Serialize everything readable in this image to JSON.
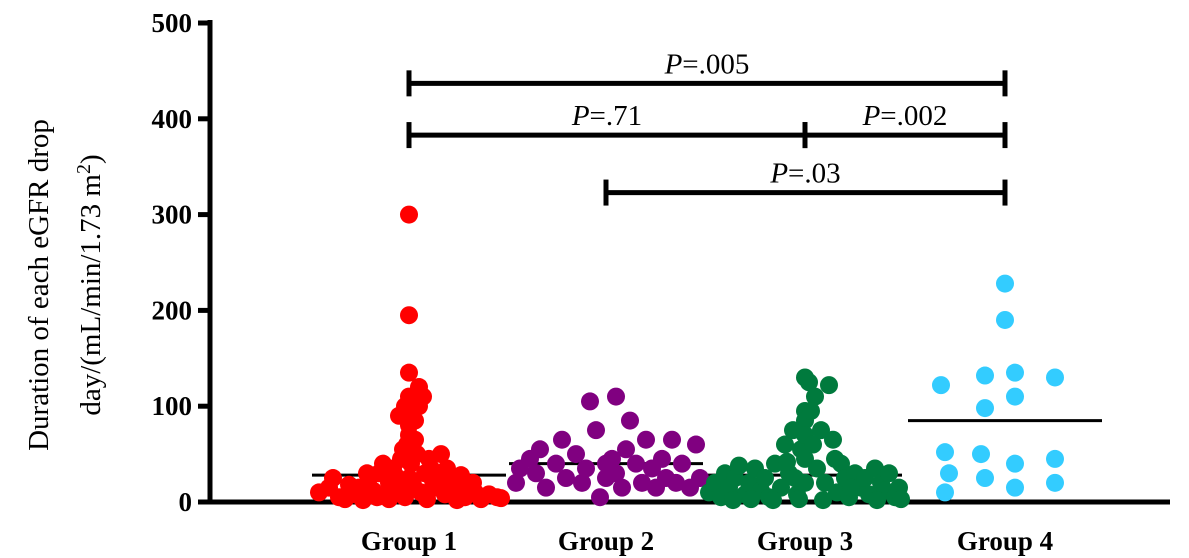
{
  "chart_data": {
    "type": "scatter",
    "ylabel_line1": "Duration of each eGFR drop",
    "ylabel_line2_main": "day/(mL/min/1.73 m",
    "ylabel_line2_sup": "2",
    "ylabel_line2_end": ")",
    "ylim": [
      0,
      500
    ],
    "yticks": [
      0,
      100,
      200,
      300,
      400,
      500
    ],
    "categories": [
      "Group 1",
      "Group 2",
      "Group 3",
      "Group 4"
    ],
    "series": [
      {
        "color": "#ff0000",
        "median": 28,
        "points": [
          [
            -0.45,
            10
          ],
          [
            -0.4,
            15
          ],
          [
            -0.35,
            5
          ],
          [
            -0.3,
            18
          ],
          [
            -0.27,
            8
          ],
          [
            -0.23,
            2
          ],
          [
            -0.2,
            25
          ],
          [
            -0.18,
            12
          ],
          [
            -0.15,
            30
          ],
          [
            -0.12,
            7
          ],
          [
            -0.1,
            20
          ],
          [
            -0.08,
            35
          ],
          [
            -0.06,
            15
          ],
          [
            -0.04,
            45
          ],
          [
            -0.03,
            55
          ],
          [
            -0.02,
            5
          ],
          [
            -0.01,
            60
          ],
          [
            0.0,
            25
          ],
          [
            0.0,
            300
          ],
          [
            0.0,
            195
          ],
          [
            0.0,
            135
          ],
          [
            0.0,
            110
          ],
          [
            0.0,
            95
          ],
          [
            0.0,
            80
          ],
          [
            0.0,
            70
          ],
          [
            0.01,
            40
          ],
          [
            0.02,
            18
          ],
          [
            0.03,
            85
          ],
          [
            0.03,
            65
          ],
          [
            0.04,
            50
          ],
          [
            0.05,
            100
          ],
          [
            0.06,
            10
          ],
          [
            0.07,
            110
          ],
          [
            0.08,
            30
          ],
          [
            0.1,
            45
          ],
          [
            0.12,
            22
          ],
          [
            0.14,
            15
          ],
          [
            0.16,
            50
          ],
          [
            0.18,
            8
          ],
          [
            0.2,
            25
          ],
          [
            0.22,
            12
          ],
          [
            0.25,
            20
          ],
          [
            0.28,
            5
          ],
          [
            0.3,
            15
          ],
          [
            0.33,
            10
          ],
          [
            0.36,
            3
          ],
          [
            0.4,
            8
          ],
          [
            0.44,
            5
          ],
          [
            -0.38,
            25
          ],
          [
            -0.32,
            3
          ],
          [
            -0.25,
            15
          ],
          [
            -0.16,
            5
          ],
          [
            -0.1,
            3
          ],
          [
            0.09,
            3
          ],
          [
            0.15,
            30
          ],
          [
            0.24,
            2
          ],
          [
            0.32,
            20
          ],
          [
            0.46,
            4
          ],
          [
            -0.05,
            90
          ],
          [
            0.05,
            120
          ],
          [
            -0.02,
            100
          ],
          [
            0.02,
            55
          ],
          [
            -0.07,
            28
          ],
          [
            0.11,
            35
          ],
          [
            -0.13,
            40
          ],
          [
            0.19,
            35
          ],
          [
            0.26,
            28
          ],
          [
            -0.21,
            30
          ]
        ]
      },
      {
        "color": "#800080",
        "median": 40,
        "points": [
          [
            -0.45,
            20
          ],
          [
            -0.43,
            35
          ],
          [
            -0.38,
            45
          ],
          [
            -0.35,
            30
          ],
          [
            -0.33,
            55
          ],
          [
            -0.3,
            15
          ],
          [
            -0.25,
            40
          ],
          [
            -0.22,
            65
          ],
          [
            -0.2,
            25
          ],
          [
            -0.15,
            50
          ],
          [
            -0.12,
            20
          ],
          [
            -0.1,
            35
          ],
          [
            -0.08,
            105
          ],
          [
            -0.05,
            75
          ],
          [
            -0.03,
            5
          ],
          [
            0.0,
            40
          ],
          [
            0.0,
            25
          ],
          [
            0.03,
            45
          ],
          [
            0.05,
            110
          ],
          [
            0.05,
            30
          ],
          [
            0.08,
            15
          ],
          [
            0.1,
            55
          ],
          [
            0.12,
            85
          ],
          [
            0.15,
            40
          ],
          [
            0.18,
            20
          ],
          [
            0.2,
            65
          ],
          [
            0.23,
            35
          ],
          [
            0.25,
            15
          ],
          [
            0.28,
            45
          ],
          [
            0.3,
            25
          ],
          [
            0.33,
            65
          ],
          [
            0.35,
            20
          ],
          [
            0.38,
            40
          ],
          [
            0.42,
            15
          ],
          [
            0.45,
            60
          ],
          [
            0.47,
            25
          ]
        ]
      },
      {
        "color": "#007a3d",
        "median": 28,
        "points": [
          [
            -0.48,
            10
          ],
          [
            -0.45,
            20
          ],
          [
            -0.42,
            5
          ],
          [
            -0.4,
            30
          ],
          [
            -0.38,
            15
          ],
          [
            -0.35,
            25
          ],
          [
            -0.33,
            38
          ],
          [
            -0.3,
            8
          ],
          [
            -0.28,
            20
          ],
          [
            -0.25,
            35
          ],
          [
            -0.22,
            12
          ],
          [
            -0.2,
            25
          ],
          [
            -0.18,
            5
          ],
          [
            -0.15,
            40
          ],
          [
            -0.12,
            15
          ],
          [
            -0.1,
            60
          ],
          [
            -0.08,
            30
          ],
          [
            -0.06,
            75
          ],
          [
            -0.04,
            8
          ],
          [
            -0.02,
            55
          ],
          [
            0.0,
            130
          ],
          [
            0.0,
            95
          ],
          [
            0.0,
            85
          ],
          [
            0.0,
            70
          ],
          [
            0.0,
            45
          ],
          [
            0.0,
            20
          ],
          [
            0.02,
            125
          ],
          [
            0.04,
            60
          ],
          [
            0.05,
            110
          ],
          [
            0.06,
            35
          ],
          [
            0.08,
            75
          ],
          [
            0.1,
            20
          ],
          [
            0.12,
            122
          ],
          [
            0.14,
            65
          ],
          [
            0.16,
            10
          ],
          [
            0.18,
            40
          ],
          [
            0.2,
            25
          ],
          [
            0.22,
            5
          ],
          [
            0.25,
            30
          ],
          [
            0.28,
            15
          ],
          [
            0.3,
            25
          ],
          [
            0.32,
            8
          ],
          [
            0.35,
            35
          ],
          [
            0.38,
            20
          ],
          [
            0.4,
            12
          ],
          [
            0.42,
            30
          ],
          [
            0.45,
            5
          ],
          [
            0.47,
            15
          ],
          [
            0.48,
            3
          ],
          [
            -0.27,
            3
          ],
          [
            -0.16,
            2
          ],
          [
            -0.03,
            3
          ],
          [
            0.09,
            2
          ],
          [
            0.23,
            15
          ],
          [
            0.36,
            2
          ],
          [
            -0.36,
            2
          ],
          [
            0.15,
            45
          ],
          [
            -0.05,
            25
          ],
          [
            0.03,
            95
          ],
          [
            -0.09,
            42
          ]
        ]
      },
      {
        "color": "#33ccff",
        "median": 85,
        "points": [
          [
            -0.32,
            122
          ],
          [
            -0.3,
            52
          ],
          [
            -0.28,
            30
          ],
          [
            -0.3,
            10
          ],
          [
            -0.12,
            50
          ],
          [
            -0.1,
            25
          ],
          [
            -0.1,
            132
          ],
          [
            -0.1,
            98
          ],
          [
            0.0,
            228
          ],
          [
            0.0,
            190
          ],
          [
            0.05,
            135
          ],
          [
            0.05,
            110
          ],
          [
            0.05,
            40
          ],
          [
            0.05,
            15
          ],
          [
            0.25,
            130
          ],
          [
            0.25,
            45
          ],
          [
            0.25,
            20
          ]
        ]
      }
    ],
    "comparisons": [
      {
        "from": 0,
        "to": 3,
        "level": 437,
        "label_italic": "P",
        "label_rest": "=.005"
      },
      {
        "from": 0,
        "to": 2,
        "level": 383,
        "label_italic": "P",
        "label_rest": "=.71"
      },
      {
        "from": 2,
        "to": 3,
        "level": 383,
        "label_italic": "P",
        "label_rest": "=.002"
      },
      {
        "from": 1,
        "to": 3,
        "level": 323,
        "label_italic": "P",
        "label_rest": "=.03"
      }
    ]
  }
}
